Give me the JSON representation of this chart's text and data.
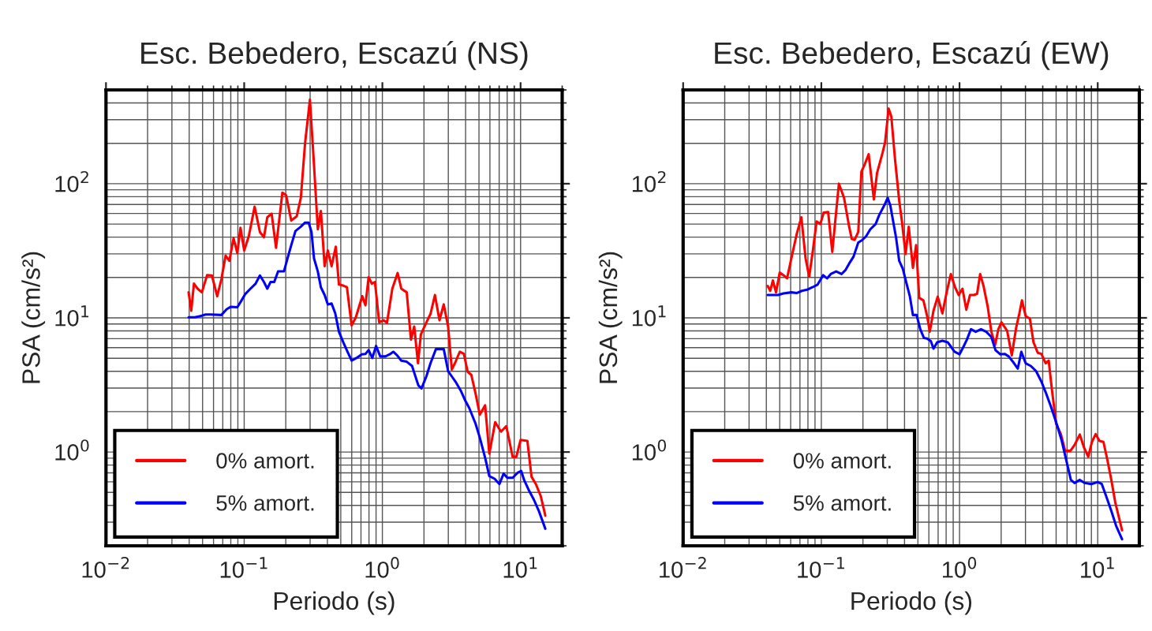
{
  "chart_data": [
    {
      "type": "line",
      "title": "Esc. Bebedero, Escazú (NS)",
      "xlabel": "Periodo (s)",
      "ylabel": "PSA (cm/s²)",
      "log": "xy",
      "grid": true,
      "legend": "bottom left",
      "xlim": [
        0.01,
        20
      ],
      "ylim": [
        0.2,
        500
      ],
      "xticks": [
        {
          "value": 0.01,
          "label": "10$^{−2}$"
        },
        {
          "value": 0.1,
          "label": "10$^{−1}$"
        },
        {
          "value": 1,
          "label": "10$^{0}$"
        },
        {
          "value": 10,
          "label": "10$^{1}$"
        }
      ],
      "yticks": [
        {
          "value": 1,
          "label": "10$^{0}$"
        },
        {
          "value": 10,
          "label": "10$^{1}$"
        },
        {
          "value": 100,
          "label": "10$^{2}$"
        }
      ],
      "series": [
        {
          "name": "0% amort.",
          "color": "#ff0000",
          "x": [
            0.0396,
            0.0414,
            0.0433,
            0.046,
            0.0494,
            0.0539,
            0.0584,
            0.0638,
            0.0684,
            0.0734,
            0.0781,
            0.0838,
            0.0892,
            0.094,
            0.1,
            0.108,
            0.119,
            0.13,
            0.139,
            0.147,
            0.158,
            0.17,
            0.189,
            0.201,
            0.219,
            0.24,
            0.257,
            0.276,
            0.299,
            0.318,
            0.341,
            0.359,
            0.382,
            0.403,
            0.429,
            0.46,
            0.485,
            0.521,
            0.554,
            0.599,
            0.643,
            0.715,
            0.754,
            0.795,
            0.838,
            0.884,
            0.948,
            1.02,
            1.08,
            1.18,
            1.29,
            1.37,
            1.5,
            1.61,
            1.7,
            1.81,
            1.9,
            2.1,
            2.23,
            2.4,
            2.59,
            2.78,
            2.99,
            3.18,
            3.35,
            3.63,
            3.89,
            4.14,
            4.4,
            4.72,
            5.07,
            5.54,
            5.94,
            6.55,
            7.22,
            7.88,
            8.76,
            9.32,
            10.0,
            11.2,
            12.0,
            12.9,
            14.0,
            15.1
          ],
          "values": [
            15.5,
            11.3,
            18.0,
            16.5,
            15.5,
            20.8,
            20.7,
            14.5,
            19.4,
            29.1,
            26.6,
            39.2,
            30.4,
            46.9,
            31.8,
            40.6,
            67.3,
            43.6,
            39.9,
            56.2,
            59.8,
            33.3,
            85.8,
            82.0,
            53.2,
            57.2,
            78.4,
            202.0,
            423.0,
            154.0,
            45.7,
            62.6,
            24.3,
            31.8,
            24.3,
            33.9,
            17.7,
            17.4,
            16.9,
            8.78,
            10.1,
            14.5,
            12.4,
            20.1,
            18.0,
            18.5,
            9.26,
            9.6,
            9.18,
            16.5,
            21.6,
            16.5,
            15.5,
            6.88,
            8.62,
            4.59,
            7.53,
            9.43,
            10.7,
            14.8,
            9.6,
            12.6,
            8.62,
            4.12,
            4.59,
            5.59,
            5.39,
            3.97,
            3.76,
            2.74,
            1.9,
            2.23,
            0.973,
            1.67,
            1.42,
            1.56,
            0.922,
            0.922,
            1.23,
            1.21,
            0.655,
            0.577,
            0.469,
            0.336
          ]
        },
        {
          "name": "5% amort.",
          "color": "#0000ff",
          "x": [
            0.0396,
            0.044,
            0.0481,
            0.0525,
            0.0574,
            0.0684,
            0.0747,
            0.0802,
            0.0892,
            0.0957,
            0.102,
            0.111,
            0.121,
            0.13,
            0.139,
            0.147,
            0.155,
            0.165,
            0.176,
            0.194,
            0.206,
            0.219,
            0.235,
            0.257,
            0.276,
            0.293,
            0.307,
            0.32,
            0.341,
            0.359,
            0.382,
            0.403,
            0.429,
            0.456,
            0.485,
            0.521,
            0.559,
            0.599,
            0.649,
            0.709,
            0.754,
            0.795,
            0.846,
            0.9,
            0.965,
            1.05,
            1.13,
            1.2,
            1.28,
            1.37,
            1.5,
            1.64,
            1.71,
            1.82,
            1.92,
            2.08,
            2.23,
            2.44,
            2.78,
            2.99,
            3.18,
            3.38,
            3.69,
            3.96,
            4.25,
            4.72,
            5.07,
            5.54,
            5.94,
            6.49,
            7.03,
            7.54,
            8.02,
            8.76,
            9.57,
            10.1,
            10.6,
            11.4,
            12.5,
            13.6,
            15.1
          ],
          "values": [
            10.1,
            10.1,
            10.3,
            10.6,
            10.6,
            10.5,
            11.6,
            12.1,
            12.0,
            13.5,
            15.1,
            16.5,
            18.0,
            20.7,
            18.5,
            16.5,
            18.5,
            18.5,
            22.2,
            22.2,
            27.8,
            34.8,
            44.4,
            47.8,
            51.3,
            51.3,
            43.6,
            27.8,
            22.2,
            16.9,
            14.8,
            12.6,
            12.8,
            10.8,
            7.88,
            6.58,
            5.59,
            4.8,
            5.02,
            5.35,
            5.39,
            5.75,
            5.02,
            6.17,
            5.16,
            5.16,
            5.35,
            5.59,
            5.25,
            4.8,
            4.71,
            4.38,
            3.83,
            3.14,
            2.98,
            3.66,
            4.59,
            5.85,
            5.85,
            4.01,
            3.66,
            3.35,
            2.87,
            2.44,
            2.13,
            1.63,
            1.28,
            0.906,
            0.661,
            0.632,
            0.577,
            0.691,
            0.643,
            0.643,
            0.704,
            0.723,
            0.62,
            0.527,
            0.44,
            0.361,
            0.268
          ]
        }
      ]
    },
    {
      "type": "line",
      "title": "Esc. Bebedero, Escazú (EW)",
      "xlabel": "Periodo (s)",
      "ylabel": "PSA (cm/s²)",
      "log": "xy",
      "grid": true,
      "legend": "bottom left",
      "xlim": [
        0.01,
        20
      ],
      "ylim": [
        0.2,
        500
      ],
      "xticks": [
        {
          "value": 0.01,
          "label": "10$^{−2}$"
        },
        {
          "value": 0.1,
          "label": "10$^{−1}$"
        },
        {
          "value": 1,
          "label": "10$^{0}$"
        },
        {
          "value": 10,
          "label": "10$^{1}$"
        }
      ],
      "yticks": [
        {
          "value": 1,
          "label": "10$^{0}$"
        },
        {
          "value": 10,
          "label": "10$^{1}$"
        },
        {
          "value": 100,
          "label": "10$^{2}$"
        }
      ],
      "series": [
        {
          "name": "0% amort.",
          "color": "#ff0000",
          "x": [
            0.0409,
            0.0427,
            0.0446,
            0.047,
            0.05,
            0.0532,
            0.0565,
            0.0607,
            0.0662,
            0.0717,
            0.0769,
            0.0817,
            0.0869,
            0.0924,
            0.0983,
            0.104,
            0.112,
            0.12,
            0.134,
            0.146,
            0.159,
            0.166,
            0.174,
            0.185,
            0.195,
            0.207,
            0.22,
            0.24,
            0.253,
            0.277,
            0.289,
            0.307,
            0.321,
            0.341,
            0.366,
            0.383,
            0.407,
            0.429,
            0.46,
            0.485,
            0.511,
            0.548,
            0.583,
            0.609,
            0.648,
            0.695,
            0.752,
            0.807,
            0.865,
            0.928,
            0.987,
            1.05,
            1.12,
            1.19,
            1.27,
            1.34,
            1.41,
            1.49,
            1.6,
            1.7,
            1.81,
            1.91,
            2.01,
            2.21,
            2.39,
            2.57,
            2.71,
            2.83,
            3.01,
            3.23,
            3.43,
            3.68,
            3.91,
            4.2,
            4.42,
            4.66,
            5.0,
            5.41,
            5.81,
            6.34,
            6.8,
            7.42,
            7.96,
            8.54,
            9.08,
            9.66,
            10.3,
            11.0,
            11.7,
            12.5,
            13.4,
            15.0
          ],
          "values": [
            17.3,
            15.9,
            19.0,
            15.5,
            21.8,
            20.8,
            19.7,
            27.8,
            41.7,
            56.2,
            27.8,
            20.3,
            31.8,
            52.3,
            50.0,
            60.9,
            61.5,
            31.0,
            100.0,
            78.4,
            47.8,
            38.8,
            38.1,
            43.6,
            123.0,
            141.0,
            166.0,
            76.3,
            120.0,
            169.0,
            202.0,
            363.0,
            317.0,
            154.0,
            74.9,
            52.3,
            29.9,
            47.8,
            23.6,
            34.8,
            14.1,
            13.5,
            10.3,
            7.88,
            11.3,
            14.4,
            10.8,
            15.5,
            21.2,
            16.9,
            14.8,
            16.5,
            11.5,
            14.8,
            14.8,
            15.1,
            21.2,
            17.4,
            12.1,
            7.88,
            6.29,
            8.24,
            9.26,
            8.02,
            5.25,
            8.46,
            10.8,
            13.5,
            10.3,
            9.87,
            6.58,
            5.49,
            5.39,
            4.59,
            4.8,
            2.92,
            1.63,
            1.36,
            1.02,
            1.02,
            1.13,
            1.35,
            1.08,
            0.922,
            1.19,
            1.36,
            1.21,
            1.19,
            0.889,
            0.632,
            0.421,
            0.261
          ]
        },
        {
          "name": "5% amort.",
          "color": "#0000ff",
          "x": [
            0.0409,
            0.0487,
            0.0532,
            0.0607,
            0.0662,
            0.0723,
            0.0789,
            0.0861,
            0.094,
            0.103,
            0.11,
            0.117,
            0.128,
            0.14,
            0.15,
            0.159,
            0.171,
            0.185,
            0.198,
            0.211,
            0.226,
            0.247,
            0.262,
            0.287,
            0.302,
            0.316,
            0.33,
            0.347,
            0.366,
            0.389,
            0.411,
            0.437,
            0.46,
            0.489,
            0.52,
            0.553,
            0.583,
            0.62,
            0.648,
            0.689,
            0.752,
            0.821,
            0.865,
            0.92,
            1.0,
            1.07,
            1.13,
            1.21,
            1.31,
            1.43,
            1.56,
            1.7,
            1.82,
            1.97,
            2.12,
            2.27,
            2.48,
            2.64,
            2.8,
            3.01,
            3.28,
            3.58,
            3.91,
            4.2,
            4.58,
            5.0,
            5.46,
            5.96,
            6.39,
            6.8,
            7.42,
            8.03,
            9.0,
            10.0,
            10.7,
            11.4,
            12.5,
            13.6,
            15.0
          ],
          "values": [
            14.8,
            14.8,
            15.2,
            15.5,
            15.3,
            15.9,
            16.2,
            16.9,
            17.7,
            20.8,
            19.7,
            21.2,
            22.2,
            21.2,
            22.8,
            25.4,
            28.6,
            36.4,
            38.1,
            40.6,
            45.7,
            50.0,
            58.2,
            69.7,
            78.4,
            68.5,
            53.2,
            39.9,
            26.6,
            23.2,
            18.5,
            14.5,
            10.5,
            10.5,
            8.24,
            7.07,
            7.0,
            6.7,
            5.9,
            6.58,
            6.76,
            6.58,
            6.12,
            5.59,
            5.35,
            6.12,
            6.88,
            8.24,
            7.88,
            8.24,
            7.88,
            7.2,
            5.75,
            5.35,
            5.39,
            5.16,
            4.59,
            4.19,
            5.59,
            4.59,
            4.38,
            4.01,
            3.35,
            2.79,
            2.19,
            1.67,
            1.24,
            0.843,
            0.62,
            0.588,
            0.62,
            0.588,
            0.577,
            0.598,
            0.577,
            0.482,
            0.368,
            0.281,
            0.224
          ]
        }
      ]
    }
  ]
}
